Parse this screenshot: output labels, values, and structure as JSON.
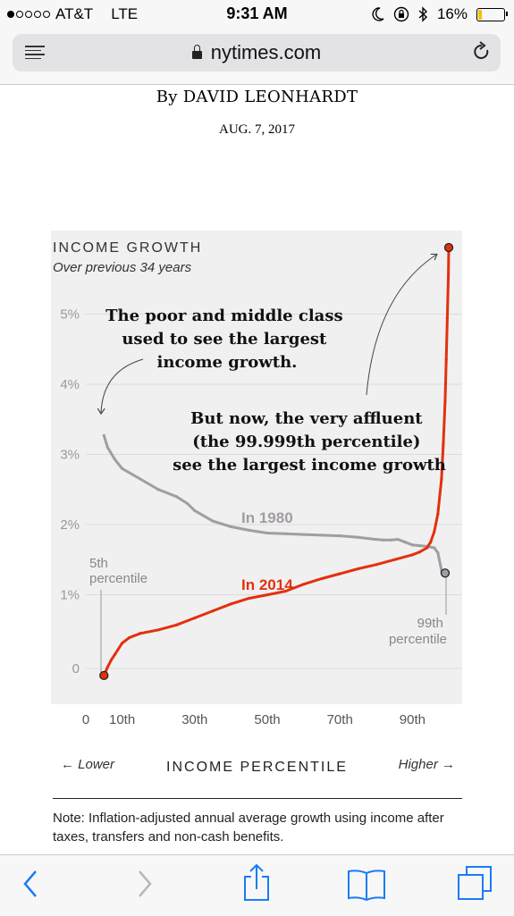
{
  "status_bar": {
    "carrier": "AT&T",
    "network": "LTE",
    "time": "9:31 AM",
    "battery": "16%",
    "battery_level": 0.16,
    "signal_bars_filled": 1,
    "signal_bars_total": 5
  },
  "browser": {
    "url": "nytimes.com"
  },
  "article": {
    "byline": "By DAVID LEONHARDT",
    "date": "AUG. 7, 2017"
  },
  "chart_data": {
    "type": "line",
    "title": "INCOME GROWTH",
    "subtitle": "Over previous 34 years",
    "xlabel": "INCOME PERCENTILE",
    "x_left_hint": "← Lower",
    "x_right_hint": "Higher →",
    "xlim": [
      0,
      100
    ],
    "ylim": [
      -0.3,
      6.0
    ],
    "x_ticks": [
      {
        "value": 0,
        "label": "0"
      },
      {
        "value": 10,
        "label": "10th"
      },
      {
        "value": 30,
        "label": "30th"
      },
      {
        "value": 50,
        "label": "50th"
      },
      {
        "value": 70,
        "label": "70th"
      },
      {
        "value": 90,
        "label": "90th"
      }
    ],
    "y_ticks": [
      {
        "value": 0,
        "label": "0"
      },
      {
        "value": 1,
        "label": "1%"
      },
      {
        "value": 2,
        "label": "2%"
      },
      {
        "value": 3,
        "label": "3%"
      },
      {
        "value": 4,
        "label": "4%"
      },
      {
        "value": 5,
        "label": "5%"
      }
    ],
    "grid": true,
    "series": [
      {
        "name": "In 1980",
        "color": "#a29ca4",
        "x": [
          5,
          6,
          8,
          10,
          15,
          20,
          25,
          28,
          30,
          35,
          40,
          45,
          50,
          55,
          60,
          65,
          70,
          75,
          80,
          82,
          84,
          86,
          88,
          90,
          92,
          94,
          96,
          97,
          98,
          99
        ],
        "y": [
          3.32,
          3.15,
          2.98,
          2.85,
          2.7,
          2.55,
          2.45,
          2.35,
          2.25,
          2.1,
          2.02,
          1.97,
          1.93,
          1.92,
          1.91,
          1.9,
          1.89,
          1.87,
          1.84,
          1.83,
          1.83,
          1.84,
          1.8,
          1.76,
          1.75,
          1.74,
          1.72,
          1.65,
          1.4,
          1.36
        ]
      },
      {
        "name": "In 2014",
        "color": "#e3300e",
        "x": [
          5,
          6,
          7,
          8,
          10,
          12,
          15,
          20,
          25,
          30,
          35,
          40,
          45,
          50,
          55,
          60,
          65,
          70,
          75,
          80,
          85,
          90,
          92,
          94,
          95,
          96,
          97,
          98,
          98.5,
          99,
          99.3,
          99.6,
          99.9,
          99.999
        ],
        "y": [
          -0.1,
          0.02,
          0.12,
          0.2,
          0.36,
          0.44,
          0.5,
          0.55,
          0.62,
          0.72,
          0.82,
          0.92,
          1.0,
          1.05,
          1.1,
          1.2,
          1.28,
          1.35,
          1.42,
          1.48,
          1.55,
          1.62,
          1.66,
          1.72,
          1.8,
          1.95,
          2.2,
          2.7,
          3.2,
          3.8,
          4.4,
          5.0,
          5.6,
          6.0
        ]
      }
    ],
    "annotations": [
      {
        "lines": [
          "The poor and middle class",
          "used to see the largest",
          "income growth."
        ]
      },
      {
        "lines": [
          "But now, the very affluent",
          "(the 99.999th percentile)",
          "see the largest income growth"
        ]
      },
      {
        "lines": [
          "5th",
          "percentile"
        ]
      },
      {
        "lines": [
          "99th",
          "percentile"
        ]
      }
    ]
  },
  "note": "Note: Inflation-adjusted annual average growth using income after taxes, transfers and non-cash benefits."
}
